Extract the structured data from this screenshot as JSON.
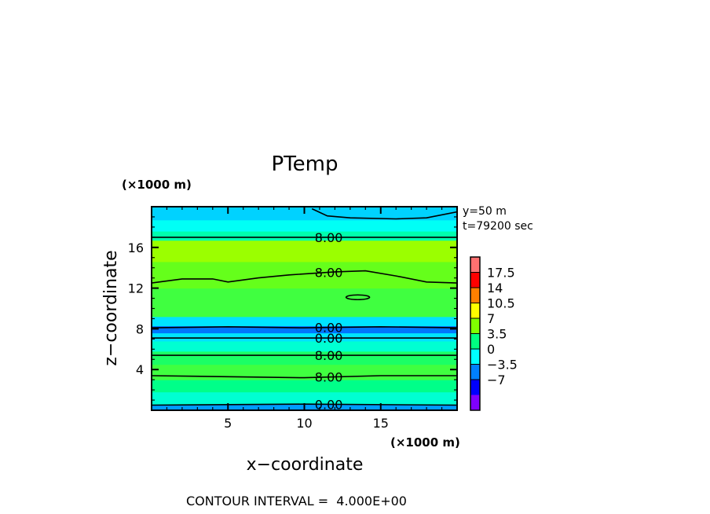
{
  "chart_data": {
    "type": "heatmap",
    "title": "PTemp",
    "xlabel": "x−coordinate",
    "ylabel": "z−coordinate",
    "x_unit": "(×1000 m)",
    "z_unit": "(×1000 m)",
    "xlim": [
      0,
      20
    ],
    "zlim": [
      0,
      20
    ],
    "x_ticks": [
      "5",
      "10",
      "15"
    ],
    "z_ticks": [
      "4",
      "8",
      "12",
      "16"
    ],
    "info": [
      "y=50  m",
      "t=79200 sec"
    ],
    "footer": "CONTOUR INTERVAL =  4.000E+00",
    "colorbar": {
      "labels": [
        "17.5",
        "14",
        "10.5",
        "7",
        "3.5",
        "0",
        "−3.5",
        "−7"
      ],
      "colors": [
        "#ff7070",
        "#ff0000",
        "#ff8000",
        "#ffff00",
        "#80ff00",
        "#00ff80",
        "#00ffff",
        "#0080ff",
        "#0000ff",
        "#8000ff"
      ]
    },
    "layers": [
      {
        "z0": 0,
        "z1": 0.6,
        "value": -1
      },
      {
        "z0": 0.6,
        "z1": 1.8,
        "value": 3
      },
      {
        "z0": 1.8,
        "z1": 3.0,
        "value": 5
      },
      {
        "z0": 3.0,
        "z1": 4.5,
        "value": 7
      },
      {
        "z0": 4.5,
        "z1": 5.8,
        "value": 6
      },
      {
        "z0": 5.8,
        "z1": 6.8,
        "value": 3
      },
      {
        "z0": 6.8,
        "z1": 7.6,
        "value": 1
      },
      {
        "z0": 7.6,
        "z1": 8.3,
        "value": -2
      },
      {
        "z0": 8.3,
        "z1": 9.2,
        "value": 1
      },
      {
        "z0": 9.2,
        "z1": 12.0,
        "value": 7
      },
      {
        "z0": 12.0,
        "z1": 14.6,
        "value": 8
      },
      {
        "z0": 14.6,
        "z1": 16.7,
        "value": 9.5
      },
      {
        "z0": 16.7,
        "z1": 17.6,
        "value": 4
      },
      {
        "z0": 17.6,
        "z1": 18.7,
        "value": 2
      },
      {
        "z0": 18.7,
        "z1": 20.0,
        "value": 0.5
      }
    ],
    "contours": [
      {
        "label": "8.00",
        "points": [
          [
            0,
            17.0
          ],
          [
            10,
            17.0
          ],
          [
            20,
            17.0
          ]
        ]
      },
      {
        "label": "8.00",
        "points": [
          [
            0,
            12.5
          ],
          [
            2,
            12.9
          ],
          [
            4,
            12.9
          ],
          [
            5,
            12.6
          ],
          [
            7,
            13.0
          ],
          [
            9,
            13.3
          ],
          [
            12,
            13.6
          ],
          [
            14,
            13.7
          ],
          [
            16,
            13.2
          ],
          [
            18,
            12.6
          ],
          [
            20,
            12.5
          ]
        ]
      },
      {
        "label": "",
        "points": [
          [
            10.5,
            19.8
          ],
          [
            11.5,
            19.1
          ],
          [
            13,
            18.9
          ],
          [
            16,
            18.8
          ],
          [
            18,
            18.9
          ],
          [
            20,
            19.5
          ]
        ]
      },
      {
        "label": "0.00",
        "points": [
          [
            0,
            8.1
          ],
          [
            5,
            8.2
          ],
          [
            10,
            8.1
          ],
          [
            15,
            8.2
          ],
          [
            20,
            8.1
          ]
        ]
      },
      {
        "label": "0.00",
        "points": [
          [
            0,
            7.1
          ],
          [
            10,
            7.1
          ],
          [
            20,
            7.1
          ]
        ]
      },
      {
        "label": "8.00",
        "points": [
          [
            0,
            5.4
          ],
          [
            10,
            5.4
          ],
          [
            20,
            5.4
          ]
        ]
      },
      {
        "label": "8.00",
        "points": [
          [
            0,
            3.4
          ],
          [
            5,
            3.3
          ],
          [
            10,
            3.2
          ],
          [
            15,
            3.4
          ],
          [
            20,
            3.4
          ]
        ]
      },
      {
        "label": "0.00",
        "points": [
          [
            0,
            0.5
          ],
          [
            10,
            0.6
          ],
          [
            20,
            0.5
          ]
        ]
      }
    ]
  }
}
